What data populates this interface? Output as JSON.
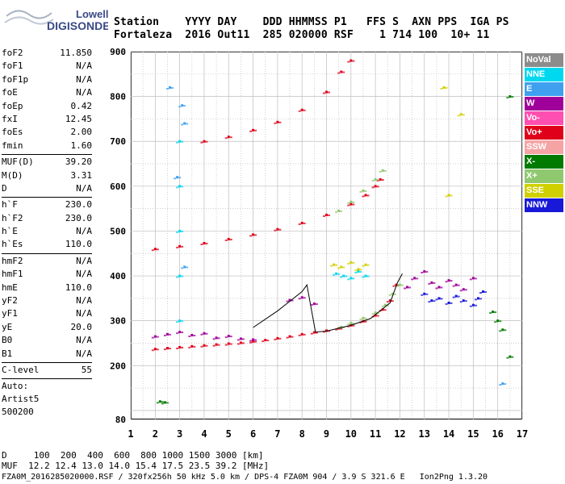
{
  "logo": {
    "line1": "Lowell",
    "line2": "DIGISONDE"
  },
  "header": {
    "columns_line": "Station    YYYY DAY    DDD HHMMSS P1   FFS S  AXN PPS  IGA PS",
    "values_line": "Fortaleza  2016 Out11  285 020000 RSF    1 714 100  10+ 11"
  },
  "params": {
    "group1": [
      {
        "name": "foF2",
        "value": "11.850"
      },
      {
        "name": "foF1",
        "value": "N/A"
      },
      {
        "name": "foF1p",
        "value": "N/A"
      },
      {
        "name": "foE",
        "value": "N/A"
      },
      {
        "name": "foEp",
        "value": "0.42"
      },
      {
        "name": "fxI",
        "value": "12.45"
      },
      {
        "name": "foEs",
        "value": "2.00"
      },
      {
        "name": "fmin",
        "value": "1.60"
      }
    ],
    "group2": [
      {
        "name": "MUF(D)",
        "value": "39.20"
      },
      {
        "name": "M(D)",
        "value": "3.31"
      },
      {
        "name": "D",
        "value": "N/A"
      }
    ],
    "group3": [
      {
        "name": "h`F",
        "value": "230.0"
      },
      {
        "name": "h`F2",
        "value": "230.0"
      },
      {
        "name": "h`E",
        "value": "N/A"
      },
      {
        "name": "h`Es",
        "value": "110.0"
      }
    ],
    "group4": [
      {
        "name": "hmF2",
        "value": "N/A"
      },
      {
        "name": "hmF1",
        "value": "N/A"
      },
      {
        "name": "hmE",
        "value": "110.0"
      },
      {
        "name": "yF2",
        "value": "N/A"
      },
      {
        "name": "yF1",
        "value": "N/A"
      },
      {
        "name": "yE",
        "value": "20.0"
      },
      {
        "name": "B0",
        "value": "N/A"
      },
      {
        "name": "B1",
        "value": "N/A"
      }
    ],
    "group5": [
      {
        "name": "C-level",
        "value": "55"
      }
    ],
    "auto_label": "Auto:",
    "artist": "Artist5",
    "artist_version": "500200"
  },
  "legend": [
    {
      "label": "NoVal",
      "color": "#8c8c8c",
      "text_color": "#ffffff"
    },
    {
      "label": "NNE",
      "color": "#00d8f0",
      "text_color": "#ffffff"
    },
    {
      "label": "E",
      "color": "#3fa0f0",
      "text_color": "#ffffff"
    },
    {
      "label": "W",
      "color": "#a0009a",
      "text_color": "#ffffff"
    },
    {
      "label": "Vo-",
      "color": "#ff4fb0",
      "text_color": "#ffffff"
    },
    {
      "label": "Vo+",
      "color": "#e0001a",
      "text_color": "#ffffff"
    },
    {
      "label": "SSW",
      "color": "#f4a4a4",
      "text_color": "#ffffff"
    },
    {
      "label": "X-",
      "color": "#007a00",
      "text_color": "#ffffff"
    },
    {
      "label": "X+",
      "color": "#90c870",
      "text_color": "#ffffff"
    },
    {
      "label": "SSE",
      "color": "#d0d000",
      "text_color": "#ffffff"
    },
    {
      "label": "NNW",
      "color": "#1818d8",
      "text_color": "#ffffff"
    }
  ],
  "footer": {
    "distance_line": "D     100  200  400  600  800 1000 1500 3000 [km]",
    "muf_line": "MUF  12.2 12.4 13.0 14.0 15.4 17.5 23.5 39.2 [MHz]",
    "file_line": "FZA0M_2016285020000.RSF / 320fx256h 50 kHz 5.0 km / DPS-4 FZA0M 904 / 3.9 S 321.6 E   Ion2Png 1.3.20"
  },
  "chart_data": {
    "type": "scatter",
    "xlim": [
      1,
      17
    ],
    "ylim": [
      80,
      900
    ],
    "x_ticks": [
      1,
      2,
      3,
      4,
      5,
      6,
      7,
      8,
      9,
      10,
      11,
      12,
      13,
      14,
      15,
      16,
      17
    ],
    "y_ticks": [
      80,
      200,
      300,
      400,
      500,
      600,
      700,
      800,
      900
    ],
    "grid": true,
    "series": [
      {
        "name": "Vo+",
        "color": "#e0001a",
        "points": [
          [
            2.0,
            237
          ],
          [
            2.5,
            239
          ],
          [
            3.0,
            241
          ],
          [
            3.5,
            243
          ],
          [
            4.0,
            245
          ],
          [
            4.5,
            247
          ],
          [
            5.0,
            249
          ],
          [
            5.5,
            251
          ],
          [
            6.0,
            254
          ],
          [
            6.5,
            257
          ],
          [
            7.0,
            261
          ],
          [
            7.5,
            265
          ],
          [
            8.0,
            270
          ],
          [
            8.5,
            274
          ],
          [
            9.0,
            278
          ],
          [
            9.5,
            283
          ],
          [
            10.0,
            290
          ],
          [
            10.5,
            299
          ],
          [
            11.0,
            312
          ],
          [
            11.3,
            325
          ],
          [
            11.6,
            345
          ],
          [
            11.85,
            380
          ],
          [
            2.0,
            460
          ],
          [
            3.0,
            466
          ],
          [
            4.0,
            473
          ],
          [
            5.0,
            482
          ],
          [
            6.0,
            492
          ],
          [
            7.0,
            504
          ],
          [
            8.0,
            518
          ],
          [
            9.0,
            536
          ],
          [
            10.0,
            560
          ],
          [
            10.6,
            580
          ],
          [
            11.0,
            600
          ],
          [
            11.2,
            615
          ],
          [
            4.0,
            700
          ],
          [
            5.0,
            710
          ],
          [
            6.0,
            725
          ],
          [
            7.0,
            743
          ],
          [
            8.0,
            770
          ],
          [
            9.0,
            810
          ],
          [
            9.6,
            855
          ],
          [
            10.0,
            880
          ]
        ]
      },
      {
        "name": "X+",
        "color": "#90c870",
        "points": [
          [
            9.6,
            286
          ],
          [
            10.0,
            295
          ],
          [
            10.5,
            306
          ],
          [
            11.0,
            318
          ],
          [
            11.4,
            335
          ],
          [
            11.7,
            360
          ],
          [
            12.0,
            380
          ],
          [
            9.5,
            545
          ],
          [
            10.0,
            565
          ],
          [
            10.5,
            590
          ],
          [
            11.0,
            615
          ],
          [
            11.3,
            635
          ]
        ]
      },
      {
        "name": "W",
        "color": "#a0009a",
        "points": [
          [
            2.0,
            265
          ],
          [
            2.5,
            270
          ],
          [
            3.0,
            275
          ],
          [
            3.5,
            268
          ],
          [
            4.0,
            272
          ],
          [
            4.5,
            262
          ],
          [
            5.0,
            266
          ],
          [
            5.5,
            260
          ],
          [
            6.0,
            258
          ],
          [
            7.5,
            346
          ],
          [
            8.0,
            352
          ],
          [
            8.5,
            338
          ],
          [
            12.3,
            375
          ],
          [
            12.6,
            395
          ],
          [
            13.0,
            410
          ],
          [
            13.3,
            385
          ],
          [
            13.6,
            375
          ],
          [
            14.0,
            390
          ],
          [
            14.3,
            380
          ],
          [
            14.6,
            370
          ],
          [
            15.0,
            395
          ]
        ]
      },
      {
        "name": "NNW",
        "color": "#1818d8",
        "points": [
          [
            13.0,
            360
          ],
          [
            13.3,
            345
          ],
          [
            13.6,
            350
          ],
          [
            14.0,
            340
          ],
          [
            14.3,
            355
          ],
          [
            14.6,
            345
          ],
          [
            15.0,
            335
          ],
          [
            15.2,
            350
          ],
          [
            15.4,
            365
          ]
        ]
      },
      {
        "name": "NNE",
        "color": "#00d8f0",
        "points": [
          [
            3.0,
            700
          ],
          [
            3.0,
            600
          ],
          [
            3.0,
            500
          ],
          [
            3.0,
            400
          ],
          [
            3.0,
            300
          ],
          [
            9.4,
            405
          ],
          [
            9.7,
            400
          ],
          [
            10.0,
            395
          ],
          [
            10.3,
            410
          ],
          [
            10.6,
            400
          ]
        ]
      },
      {
        "name": "SSE",
        "color": "#d0d000",
        "points": [
          [
            9.3,
            425
          ],
          [
            9.6,
            420
          ],
          [
            10.0,
            430
          ],
          [
            10.3,
            415
          ],
          [
            10.6,
            425
          ],
          [
            13.8,
            820
          ],
          [
            14.5,
            760
          ],
          [
            14.0,
            580
          ]
        ]
      },
      {
        "name": "X-",
        "color": "#007a00",
        "points": [
          [
            2.2,
            120
          ],
          [
            2.4,
            118
          ],
          [
            15.8,
            320
          ],
          [
            16.0,
            300
          ],
          [
            16.2,
            280
          ],
          [
            16.5,
            220
          ],
          [
            16.5,
            800
          ]
        ]
      },
      {
        "name": "E",
        "color": "#3fa0f0",
        "points": [
          [
            2.6,
            820
          ],
          [
            3.1,
            780
          ],
          [
            3.2,
            740
          ],
          [
            2.9,
            620
          ],
          [
            3.2,
            420
          ],
          [
            16.2,
            160
          ]
        ]
      }
    ],
    "trace_line": [
      [
        6.0,
        285
      ],
      [
        7.0,
        322
      ],
      [
        8.0,
        365
      ],
      [
        8.2,
        380
      ],
      [
        8.55,
        275
      ],
      [
        9.0,
        277
      ],
      [
        10.0,
        290
      ],
      [
        10.8,
        305
      ],
      [
        11.6,
        340
      ],
      [
        11.9,
        385
      ],
      [
        12.1,
        405
      ]
    ]
  }
}
